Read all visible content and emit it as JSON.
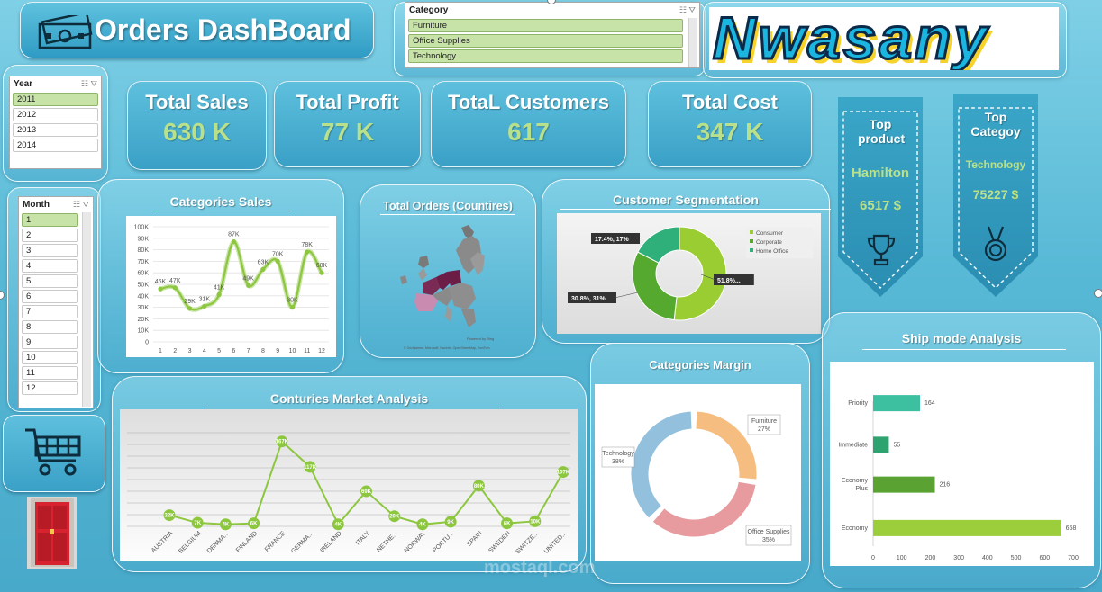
{
  "title": "Orders DashBoard",
  "logo_text": "Nwasany",
  "category_slicer": {
    "header": "Category",
    "items": [
      "Furniture",
      "Office Supplies",
      "Technology"
    ]
  },
  "year_slicer": {
    "header": "Year",
    "items": [
      "2011",
      "2012",
      "2013",
      "2014"
    ],
    "selected": "2011"
  },
  "month_slicer": {
    "header": "Month",
    "items": [
      "1",
      "2",
      "3",
      "4",
      "5",
      "6",
      "7",
      "8",
      "9",
      "10",
      "11",
      "12"
    ],
    "selected": "1"
  },
  "kpis": [
    {
      "label": "Total Sales",
      "value": "630 K"
    },
    {
      "label": "Total Profit",
      "value": "77 K"
    },
    {
      "label": "TotaL Customers",
      "value": "617"
    },
    {
      "label": "Total Cost",
      "value": "347 K"
    }
  ],
  "top_product": {
    "label": "Top product",
    "name": "Hamilton",
    "value": "6517 $"
  },
  "top_category": {
    "label": "Top Categoy",
    "name": "Technology",
    "value": "75227 $"
  },
  "titles": {
    "categories_sales": "Categories Sales",
    "total_orders": "Total Orders (Countires)",
    "customer_segmentation": "Customer Segmentation",
    "ship_mode": "Ship mode Analysis",
    "categories_margin": "Categories Margin",
    "countries_market": "Conturies Market Analysis"
  },
  "map_credit": "© GeoNames, Microsoft, Navinfo, OpenStreetMap, TomTom",
  "map_powered": "Powered by Bing",
  "watermark": "mostaql.com",
  "colors": {
    "accent_green": "#8dc63f",
    "kpi_value": "#b9e08a",
    "bg": "#58b9d6"
  },
  "chart_data": [
    {
      "id": "categories_sales",
      "type": "line",
      "x": [
        1,
        2,
        3,
        4,
        5,
        6,
        7,
        8,
        9,
        10,
        11,
        12
      ],
      "values": [
        46,
        47,
        29,
        31,
        41,
        87,
        49,
        63,
        70,
        30,
        78,
        60
      ],
      "data_labels": [
        "46K",
        "47K",
        "29K",
        "31K",
        "41K",
        "87K",
        "49K",
        "63K",
        "70K",
        "30K",
        "78K",
        "60K"
      ],
      "y_ticks": [
        "0",
        "10K",
        "20K",
        "30K",
        "40K",
        "50K",
        "60K",
        "70K",
        "80K",
        "90K",
        "100K"
      ],
      "ylim": [
        0,
        100
      ],
      "grid": true
    },
    {
      "id": "customer_segmentation",
      "type": "pie",
      "donut": true,
      "slices": [
        {
          "name": "Consumer",
          "value": 51.8,
          "label": "51.8%...",
          "color": "#9acd32"
        },
        {
          "name": "Corporate",
          "value": 30.8,
          "label": "30.8%, 31%",
          "color": "#56a92f"
        },
        {
          "name": "Home Office",
          "value": 17.4,
          "label": "17.4%, 17%",
          "color": "#2fb07a"
        }
      ],
      "legend": "right"
    },
    {
      "id": "ship_mode",
      "type": "bar",
      "orientation": "horizontal",
      "categories": [
        "Priority",
        "Immediate",
        "Economy Plus",
        "Economy"
      ],
      "values": [
        164,
        55,
        216,
        658
      ],
      "colors": [
        "#3cc0a0",
        "#2ea36f",
        "#5aa332",
        "#9ccd3a"
      ],
      "x_ticks": [
        "0",
        "100",
        "200",
        "300",
        "400",
        "500",
        "600",
        "700"
      ],
      "xlim": [
        0,
        700
      ]
    },
    {
      "id": "categories_margin",
      "type": "pie",
      "donut": true,
      "slices": [
        {
          "name": "Furniture",
          "value": 27,
          "label": "27%",
          "color": "#f5b26b"
        },
        {
          "name": "Office Supplies",
          "value": 35,
          "label": "35%",
          "color": "#e58a8e"
        },
        {
          "name": "Technology",
          "value": 38,
          "label": "38%",
          "color": "#7fb6d8"
        }
      ]
    },
    {
      "id": "countries_market",
      "type": "line",
      "categories": [
        "AUSTRIA",
        "BELGIUM",
        "DENMA...",
        "FINLAND",
        "FRANCE",
        "GERMA...",
        "IRELAND",
        "ITALY",
        "NETHE...",
        "NORWAY",
        "PORTU...",
        "SPAIN",
        "SWEDEN",
        "SWITZE...",
        "UNITED..."
      ],
      "values": [
        22,
        7,
        4,
        6,
        167,
        117,
        4,
        69,
        20,
        4,
        9,
        80,
        6,
        10,
        107
      ],
      "data_labels": [
        "22K",
        "7K",
        "4K",
        "6K",
        "167K",
        "117K",
        "4K",
        "69K",
        "20K",
        "4K",
        "9K",
        "80K",
        "6K",
        "10K",
        "107K"
      ]
    }
  ]
}
